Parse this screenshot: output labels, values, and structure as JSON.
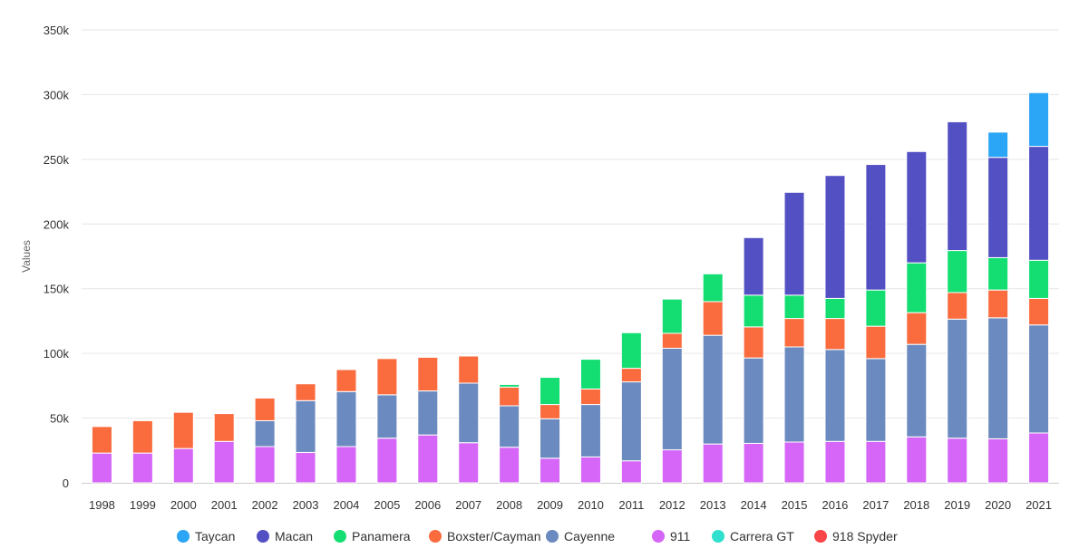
{
  "chart_data": {
    "type": "bar",
    "stacked": true,
    "ylabel": "Values",
    "xlabel": "",
    "ylim": [
      0,
      350000
    ],
    "yticks": [
      {
        "value": 0,
        "label": "0"
      },
      {
        "value": 50000,
        "label": "50k"
      },
      {
        "value": 100000,
        "label": "100k"
      },
      {
        "value": 150000,
        "label": "150k"
      },
      {
        "value": 200000,
        "label": "200k"
      },
      {
        "value": 250000,
        "label": "250k"
      },
      {
        "value": 300000,
        "label": "300k"
      },
      {
        "value": 350000,
        "label": "350k"
      }
    ],
    "grid": true,
    "legend_position": "bottom",
    "categories": [
      "1998",
      "1999",
      "2000",
      "2001",
      "2002",
      "2003",
      "2004",
      "2005",
      "2006",
      "2007",
      "2008",
      "2009",
      "2010",
      "2011",
      "2012",
      "2013",
      "2014",
      "2015",
      "2016",
      "2017",
      "2018",
      "2019",
      "2020",
      "2021"
    ],
    "series": [
      {
        "name": "911",
        "color": "#d566f7",
        "values": [
          23000,
          23000,
          26500,
          32000,
          28000,
          23500,
          28000,
          34500,
          37000,
          31000,
          27500,
          19000,
          20000,
          17000,
          25500,
          30000,
          30500,
          31500,
          32000,
          32000,
          35500,
          34500,
          34000,
          38500
        ]
      },
      {
        "name": "Cayenne",
        "color": "#6b8abf",
        "values": [
          0,
          0,
          0,
          0,
          20000,
          40000,
          42500,
          33500,
          34000,
          46000,
          32000,
          30500,
          40500,
          61000,
          78500,
          84000,
          66000,
          73500,
          71000,
          64000,
          71500,
          92000,
          93500,
          83500
        ]
      },
      {
        "name": "Boxster/Cayman",
        "color": "#fa6b3e",
        "values": [
          20500,
          25000,
          28000,
          21500,
          17500,
          13000,
          17000,
          28000,
          26000,
          21000,
          14500,
          11000,
          12000,
          10500,
          11500,
          26000,
          24000,
          22000,
          24000,
          25000,
          24500,
          20500,
          21500,
          20500
        ]
      },
      {
        "name": "Panamera",
        "color": "#14de72",
        "values": [
          0,
          0,
          0,
          0,
          0,
          0,
          0,
          0,
          0,
          0,
          2000,
          21000,
          23000,
          27500,
          26500,
          21500,
          24500,
          18000,
          15500,
          28000,
          38500,
          32500,
          25000,
          29500
        ]
      },
      {
        "name": "Macan",
        "color": "#5350c3",
        "values": [
          0,
          0,
          0,
          0,
          0,
          0,
          0,
          0,
          0,
          0,
          0,
          0,
          0,
          0,
          0,
          0,
          44500,
          79500,
          95000,
          97000,
          86000,
          99500,
          77500,
          88000
        ]
      },
      {
        "name": "Taycan",
        "color": "#2ba5f5",
        "values": [
          0,
          0,
          0,
          0,
          0,
          0,
          0,
          0,
          0,
          0,
          0,
          0,
          0,
          0,
          0,
          0,
          0,
          0,
          0,
          0,
          0,
          0,
          19500,
          41500
        ]
      },
      {
        "name": "Carrera GT",
        "color": "#2ee0cd",
        "values": [
          0,
          0,
          0,
          0,
          0,
          0,
          0,
          0,
          0,
          0,
          0,
          0,
          0,
          0,
          0,
          0,
          0,
          0,
          0,
          0,
          0,
          0,
          0,
          0
        ]
      },
      {
        "name": "918 Spyder",
        "color": "#f94548",
        "values": [
          0,
          0,
          0,
          0,
          0,
          0,
          0,
          0,
          0,
          0,
          0,
          0,
          0,
          0,
          0,
          0,
          0,
          0,
          0,
          0,
          0,
          0,
          0,
          0
        ]
      }
    ],
    "legend_order": [
      "Taycan",
      "Macan",
      "Panamera",
      "Boxster/Cayman",
      "Cayenne",
      "911",
      "Carrera GT",
      "918 Spyder"
    ]
  }
}
